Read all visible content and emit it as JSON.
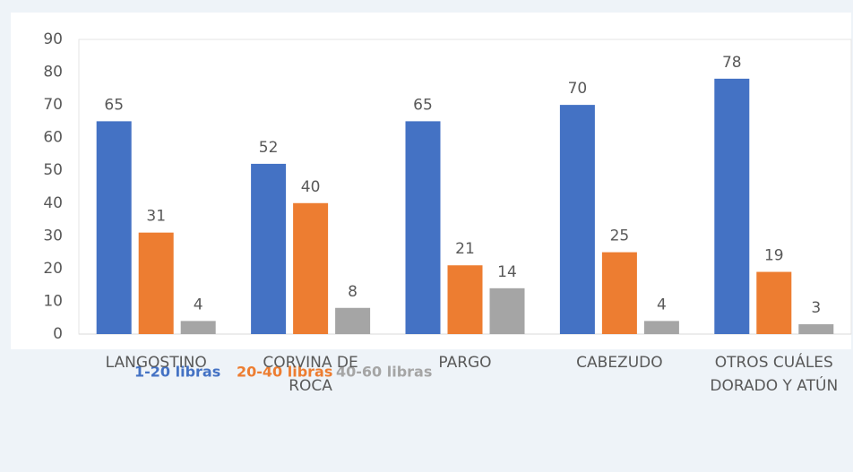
{
  "chart_data": {
    "type": "bar",
    "categories": [
      "LANGOSTINO",
      "CORVINA DE ROCA",
      "PARGO",
      "CABEZUDO",
      "OTROS CUÁLES DORADO Y ATÚN"
    ],
    "series": [
      {
        "name": "1-20 libras",
        "color": "#4472c4",
        "values": [
          65,
          52,
          65,
          70,
          78
        ]
      },
      {
        "name": "20-40 libras",
        "color": "#ed7d31",
        "values": [
          31,
          40,
          21,
          25,
          19
        ]
      },
      {
        "name": "40-60 libras",
        "color": "#a5a5a5",
        "values": [
          4,
          8,
          14,
          4,
          3
        ]
      }
    ],
    "ylim": [
      0,
      90
    ],
    "yticks": [
      0,
      10,
      20,
      30,
      40,
      50,
      60,
      70,
      80,
      90
    ],
    "grid": false
  }
}
